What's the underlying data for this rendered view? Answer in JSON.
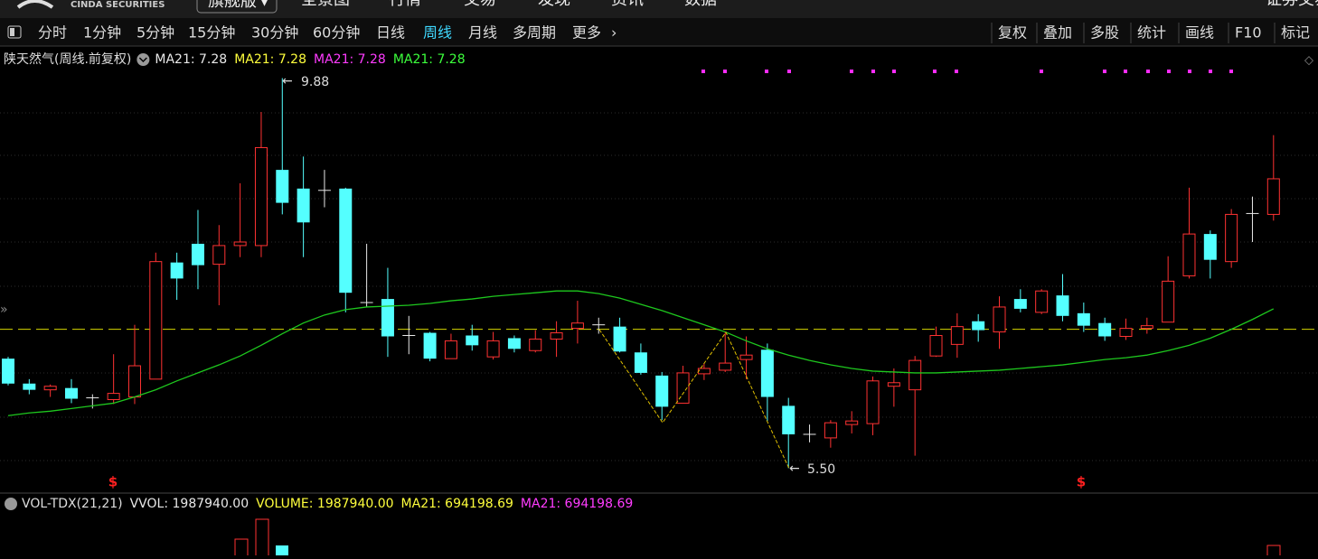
{
  "top_nav": {
    "logo": "CINDA SECURITIES",
    "edition": "旗舰版",
    "items": [
      "全景图",
      "行情",
      "交易",
      "发现",
      "资讯",
      "数据"
    ],
    "right": "证券交易"
  },
  "toolbar": {
    "periods": [
      "分时",
      "1分钟",
      "5分钟",
      "15分钟",
      "30分钟",
      "60分钟",
      "日线",
      "周线",
      "月线",
      "多周期",
      "更多"
    ],
    "tools": [
      "复权",
      "叠加",
      "多股",
      "统计",
      "画线",
      "F10",
      "标记"
    ]
  },
  "chart_data": {
    "type": "candlestick",
    "title": "陕天然气(周线.前复权)",
    "indicators": [
      {
        "text": "MA21: 7.28",
        "color": "#e8e8e8"
      },
      {
        "text": "MA21: 7.28",
        "color": "#ffff3c"
      },
      {
        "text": "MA21: 7.28",
        "color": "#ff3cff"
      },
      {
        "text": "MA21: 7.28",
        "color": "#3cff3c"
      }
    ],
    "open": [
      6.73,
      6.45,
      6.38,
      6.4,
      6.29,
      6.27,
      6.3,
      6.5,
      7.81,
      8.02,
      7.79,
      8.0,
      8.0,
      8.85,
      8.64,
      8.62,
      8.64,
      7.36,
      7.4,
      6.99,
      7.02,
      6.73,
      6.99,
      6.75,
      6.96,
      6.82,
      6.95,
      7.07,
      7.11,
      7.09,
      6.8,
      6.54,
      6.23,
      6.56,
      6.6,
      6.72,
      6.83,
      6.2,
      5.88,
      5.84,
      5.99,
      6.0,
      6.42,
      6.38,
      6.76,
      6.89,
      7.15,
      7.03,
      7.4,
      7.25,
      7.44,
      7.24,
      7.13,
      6.98,
      7.07,
      7.14,
      7.66,
      8.13,
      7.82,
      8.36,
      8.35
    ],
    "high": [
      6.75,
      6.5,
      6.44,
      6.5,
      6.33,
      6.78,
      7.11,
      7.92,
      7.92,
      8.4,
      8.23,
      8.7,
      9.5,
      9.88,
      9.0,
      8.85,
      8.65,
      8.02,
      7.75,
      7.21,
      7.03,
      7.01,
      7.11,
      7.03,
      6.99,
      7.05,
      7.15,
      7.38,
      7.19,
      7.19,
      6.9,
      6.58,
      6.65,
      6.68,
      7.03,
      6.98,
      6.9,
      6.29,
      5.99,
      6.04,
      6.14,
      6.53,
      6.62,
      6.76,
      7.09,
      7.24,
      7.23,
      7.43,
      7.51,
      7.51,
      7.68,
      7.36,
      7.19,
      7.18,
      7.19,
      7.88,
      8.65,
      8.17,
      8.41,
      8.55,
      9.24
    ],
    "low": [
      6.43,
      6.33,
      6.3,
      6.23,
      6.17,
      6.22,
      6.22,
      6.5,
      7.39,
      7.51,
      7.33,
      7.87,
      7.87,
      8.35,
      7.87,
      8.43,
      7.25,
      7.31,
      6.75,
      6.78,
      6.7,
      6.73,
      6.82,
      6.72,
      6.8,
      6.8,
      6.75,
      6.9,
      7.01,
      6.8,
      6.55,
      6.04,
      6.23,
      6.49,
      6.58,
      6.5,
      6.03,
      5.5,
      5.79,
      5.73,
      5.89,
      5.87,
      6.19,
      5.64,
      6.75,
      6.74,
      6.92,
      6.84,
      7.25,
      7.23,
      7.15,
      7.03,
      6.93,
      6.94,
      7.01,
      7.14,
      7.63,
      7.63,
      7.75,
      8.04,
      8.28
    ],
    "close": [
      6.45,
      6.38,
      6.42,
      6.28,
      6.29,
      6.34,
      6.65,
      7.82,
      7.63,
      7.78,
      8.0,
      8.04,
      9.1,
      8.48,
      8.26,
      8.62,
      7.47,
      7.36,
      6.98,
      6.99,
      6.73,
      6.93,
      6.88,
      6.93,
      6.84,
      6.95,
      7.02,
      7.13,
      7.11,
      6.81,
      6.57,
      6.19,
      6.57,
      6.62,
      6.68,
      6.77,
      6.3,
      5.88,
      5.88,
      6.01,
      6.03,
      6.48,
      6.46,
      6.71,
      6.99,
      7.09,
      7.05,
      7.31,
      7.29,
      7.49,
      7.21,
      7.1,
      6.98,
      7.07,
      7.1,
      7.6,
      8.13,
      7.84,
      8.35,
      8.36,
      8.75
    ],
    "up_color": "#ff3232",
    "down_color": "#54ffff",
    "flat_color": "#e8e8e8",
    "ma_values": [
      6.09,
      6.12,
      6.14,
      6.17,
      6.2,
      6.23,
      6.3,
      6.38,
      6.48,
      6.57,
      6.66,
      6.76,
      6.88,
      7.01,
      7.13,
      7.22,
      7.28,
      7.31,
      7.32,
      7.33,
      7.35,
      7.38,
      7.4,
      7.43,
      7.45,
      7.47,
      7.49,
      7.49,
      7.46,
      7.41,
      7.34,
      7.27,
      7.19,
      7.11,
      7.03,
      6.93,
      6.84,
      6.77,
      6.71,
      6.66,
      6.62,
      6.59,
      6.58,
      6.57,
      6.57,
      6.58,
      6.59,
      6.6,
      6.62,
      6.64,
      6.66,
      6.69,
      6.72,
      6.74,
      6.77,
      6.82,
      6.88,
      6.96,
      7.06,
      7.17,
      7.29
    ],
    "ma_color": "#1ec81e",
    "ylim": [
      5.2,
      10.2
    ],
    "hline": {
      "value": 7.06,
      "color": "#d8d800"
    },
    "annotations": [
      "9.88",
      "5.50"
    ],
    "signals": [
      "$",
      "$"
    ]
  },
  "volume_panel": {
    "title": "VOL-TDX(21,21)",
    "indicators": [
      {
        "text": "VVOL: 1987940.00",
        "color": "#e8e8e8"
      },
      {
        "text": "VOLUME: 1987940.00",
        "color": "#ffff3c"
      },
      {
        "text": "MA21: 694198.69",
        "color": "#ffff3c"
      },
      {
        "text": "MA21: 694198.69",
        "color": "#ff3cff"
      }
    ]
  }
}
